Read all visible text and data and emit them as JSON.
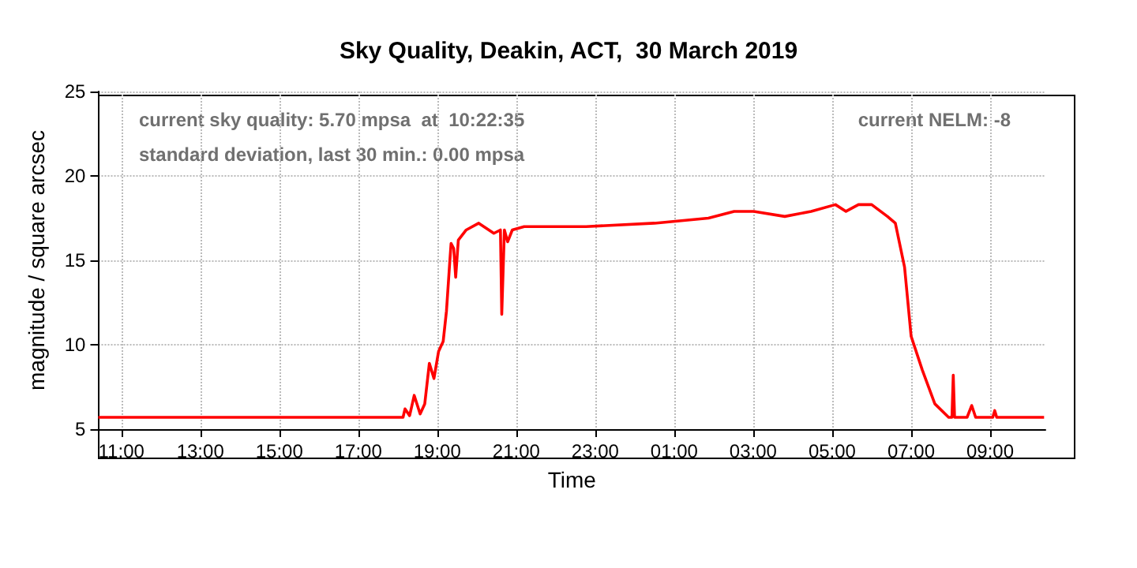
{
  "chart_data": {
    "type": "line",
    "title": "Sky Quality, Deakin, ACT,  30 March 2019",
    "xlabel": "Time",
    "ylabel": "magnitude / square arcsec",
    "annotations": [
      "current sky quality: 5.70 mpsa  at  10:22:35",
      "standard deviation, last 30 min.: 0.00 mpsa",
      "current NELM: -8"
    ],
    "xlim": [
      "2019-03-29T10:25",
      "2019-03-30T10:24"
    ],
    "ylim": [
      5,
      25
    ],
    "yticks": [
      5,
      10,
      15,
      20,
      25
    ],
    "xticks": [
      {
        "value": "2019-03-29T11:00",
        "label": "11:00"
      },
      {
        "value": "2019-03-29T13:00",
        "label": "13:00"
      },
      {
        "value": "2019-03-29T15:00",
        "label": "15:00"
      },
      {
        "value": "2019-03-29T17:00",
        "label": "17:00"
      },
      {
        "value": "2019-03-29T19:00",
        "label": "19:00"
      },
      {
        "value": "2019-03-29T21:00",
        "label": "21:00"
      },
      {
        "value": "2019-03-29T23:00",
        "label": "23:00"
      },
      {
        "value": "2019-03-30T01:00",
        "label": "01:00"
      },
      {
        "value": "2019-03-30T03:00",
        "label": "03:00"
      },
      {
        "value": "2019-03-30T05:00",
        "label": "05:00"
      },
      {
        "value": "2019-03-30T07:00",
        "label": "07:00"
      },
      {
        "value": "2019-03-30T09:00",
        "label": "09:00"
      }
    ],
    "grid": true,
    "line_style": "solid",
    "marker": "none",
    "series": [
      {
        "color": "#ff0000",
        "x": [
          "2019-03-29T10:25",
          "2019-03-29T18:08",
          "2019-03-29T18:11",
          "2019-03-29T18:18",
          "2019-03-29T18:25",
          "2019-03-29T18:34",
          "2019-03-29T18:41",
          "2019-03-29T18:48",
          "2019-03-29T18:55",
          "2019-03-29T19:02",
          "2019-03-29T19:09",
          "2019-03-29T19:14",
          "2019-03-29T19:19",
          "2019-03-29T19:21",
          "2019-03-29T19:25",
          "2019-03-29T19:28",
          "2019-03-29T19:32",
          "2019-03-29T19:44",
          "2019-03-29T20:03",
          "2019-03-29T20:26",
          "2019-03-29T20:36",
          "2019-03-29T20:38",
          "2019-03-29T20:42",
          "2019-03-29T20:47",
          "2019-03-29T20:54",
          "2019-03-29T21:12",
          "2019-03-29T22:46",
          "2019-03-30T00:30",
          "2019-03-30T01:52",
          "2019-03-30T02:31",
          "2019-03-30T03:01",
          "2019-03-30T03:48",
          "2019-03-30T04:28",
          "2019-03-30T05:05",
          "2019-03-30T05:21",
          "2019-03-30T05:40",
          "2019-03-30T06:00",
          "2019-03-30T06:24",
          "2019-03-30T06:36",
          "2019-03-30T06:50",
          "2019-03-30T07:00",
          "2019-03-30T07:17",
          "2019-03-30T07:36",
          "2019-03-30T07:57",
          "2019-03-30T08:02",
          "2019-03-30T08:04",
          "2019-03-30T08:06",
          "2019-03-30T08:25",
          "2019-03-30T08:32",
          "2019-03-30T08:38",
          "2019-03-30T09:04",
          "2019-03-30T09:07",
          "2019-03-30T09:10",
          "2019-03-30T10:22"
        ],
        "values": [
          5.7,
          5.7,
          6.2,
          5.8,
          7.0,
          5.9,
          6.5,
          8.9,
          8.0,
          9.6,
          10.2,
          12.0,
          14.9,
          16.0,
          15.7,
          14.0,
          16.2,
          16.8,
          17.2,
          16.6,
          16.8,
          11.8,
          16.8,
          16.1,
          16.8,
          17.0,
          17.0,
          17.2,
          17.5,
          17.9,
          17.9,
          17.6,
          17.9,
          18.3,
          17.9,
          18.3,
          18.3,
          17.6,
          17.2,
          14.6,
          10.5,
          8.5,
          6.5,
          5.7,
          5.7,
          8.2,
          5.7,
          5.7,
          6.4,
          5.7,
          5.7,
          6.1,
          5.7,
          5.7
        ]
      }
    ]
  }
}
